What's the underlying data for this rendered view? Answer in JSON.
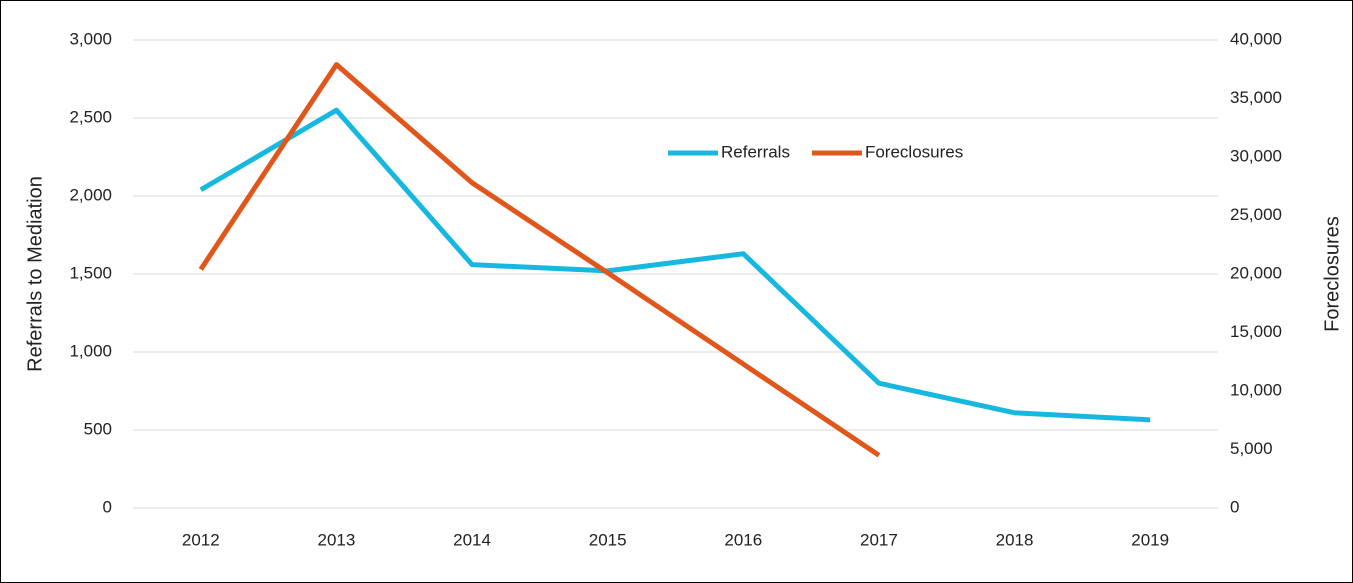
{
  "chart_data": {
    "type": "line",
    "categories": [
      "2012",
      "2013",
      "2014",
      "2015",
      "2016",
      "2017",
      "2018",
      "2019"
    ],
    "series": [
      {
        "name": "Referrals",
        "color": "#17b8e0",
        "values": [
          2040,
          2550,
          1560,
          1520,
          1630,
          800,
          610,
          565
        ]
      },
      {
        "name": "Foreclosures",
        "color": "#e0561b",
        "axis": "y2",
        "values": [
          20400,
          37900,
          27800,
          20100,
          12300,
          4500,
          null,
          null
        ]
      }
    ],
    "ylabel": "Referrals to Mediation",
    "y2label": "Foreclosures",
    "ylim": [
      0,
      3000
    ],
    "yticks": [
      0,
      500,
      {
        "value": 1000,
        "label": "1,000"
      },
      {
        "value": 1500,
        "label": "1,500"
      },
      {
        "value": 2000,
        "label": "2,000"
      },
      {
        "value": 2500,
        "label": "2,500"
      },
      {
        "value": 3000,
        "label": "3,000"
      }
    ],
    "y2lim": [
      0,
      40000
    ],
    "y2ticks": [
      0,
      {
        "value": 5000,
        "label": "5,000"
      },
      {
        "value": 10000,
        "label": "10,000"
      },
      {
        "value": 15000,
        "label": "15,000"
      },
      {
        "value": 20000,
        "label": "20,000"
      },
      {
        "value": 25000,
        "label": "25,000"
      },
      {
        "value": 30000,
        "label": "30,000"
      },
      {
        "value": 35000,
        "label": "35,000"
      },
      {
        "value": 40000,
        "label": "40,000"
      }
    ],
    "grid": true,
    "legend": "top"
  }
}
